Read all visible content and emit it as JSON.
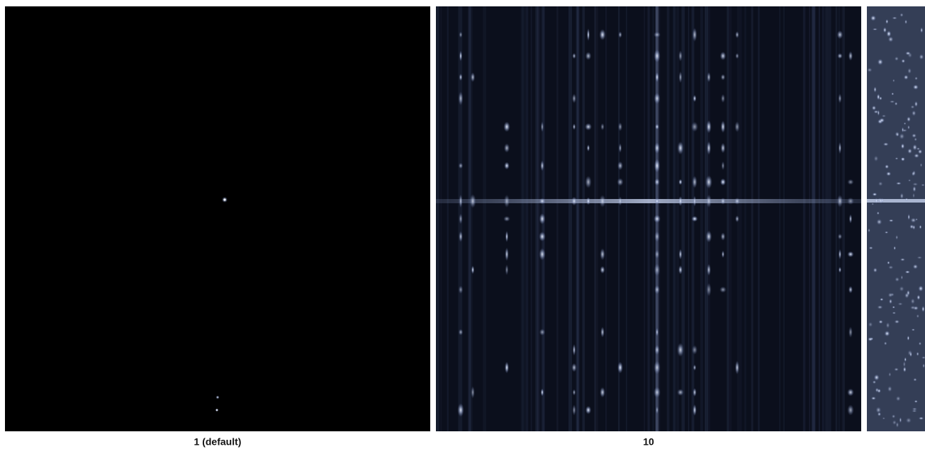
{
  "panels": [
    {
      "caption": "1 (default)"
    },
    {
      "caption": "10"
    }
  ]
}
